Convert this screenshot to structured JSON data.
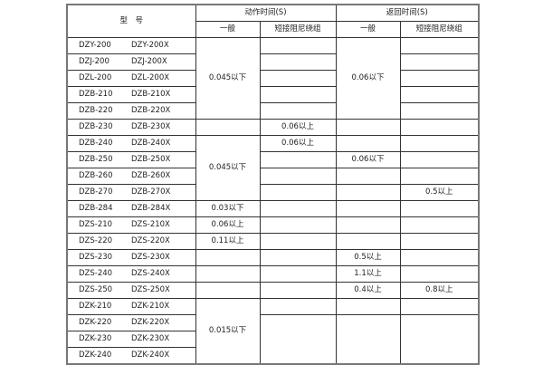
{
  "header": {
    "model": "型　号",
    "action_time": "动作时间(S)",
    "return_time": "返回时间(S)",
    "general": "一般",
    "short_damping": "短接阻尼绕组"
  },
  "rows": [
    {
      "model_a": "DZY-200",
      "model_b": "DZY-200X",
      "action_general": "0.045以下",
      "action_short": "",
      "return_general": "0.06以下",
      "return_short": ""
    },
    {
      "model_a": "DZJ-200",
      "model_b": "DZJ-200X",
      "action_general": "",
      "action_short": "",
      "return_general": "",
      "return_short": ""
    },
    {
      "model_a": "DZL-200",
      "model_b": "DZL-200X",
      "action_general": "",
      "action_short": "",
      "return_general": "",
      "return_short": ""
    },
    {
      "model_a": "DZB-210",
      "model_b": "DZB-210X",
      "action_general": "",
      "action_short": "",
      "return_general": "",
      "return_short": ""
    },
    {
      "model_a": "DZB-220",
      "model_b": "DZB-220X",
      "action_general": "",
      "action_short": "",
      "return_general": "",
      "return_short": ""
    },
    {
      "model_a": "DZB-230",
      "model_b": "DZB-230X",
      "action_general": "",
      "action_short": "0.06以上",
      "return_general": "",
      "return_short": ""
    },
    {
      "model_a": "DZB-240",
      "model_b": "DZB-240X",
      "action_general": "0.045以下",
      "action_short": "0.06以上",
      "return_general": "",
      "return_short": ""
    },
    {
      "model_a": "DZB-250",
      "model_b": "DZB-250X",
      "action_general": "",
      "action_short": "",
      "return_general": "0.06以下",
      "return_short": ""
    },
    {
      "model_a": "DZB-260",
      "model_b": "DZB-260X",
      "action_general": "",
      "action_short": "",
      "return_general": "",
      "return_short": ""
    },
    {
      "model_a": "DZB-270",
      "model_b": "DZB-270X",
      "action_general": "",
      "action_short": "",
      "return_general": "",
      "return_short": "0.5以上"
    },
    {
      "model_a": "DZB-284",
      "model_b": "DZB-284X",
      "action_general": "0.03以下",
      "action_short": "",
      "return_general": "",
      "return_short": ""
    },
    {
      "model_a": "DZS-210",
      "model_b": "DZS-210X",
      "action_general": "0.06以上",
      "action_short": "",
      "return_general": "",
      "return_short": ""
    },
    {
      "model_a": "DZS-220",
      "model_b": "DZS-220X",
      "action_general": "0.11以上",
      "action_short": "",
      "return_general": "",
      "return_short": ""
    },
    {
      "model_a": "DZS-230",
      "model_b": "DZS-230X",
      "action_general": "",
      "action_short": "",
      "return_general": "0.5以上",
      "return_short": ""
    },
    {
      "model_a": "DZS-240",
      "model_b": "DZS-240X",
      "action_general": "",
      "action_short": "",
      "return_general": "1.1以上",
      "return_short": ""
    },
    {
      "model_a": "DZS-250",
      "model_b": "DZS-250X",
      "action_general": "",
      "action_short": "",
      "return_general": "0.4以上",
      "return_short": "0.8以上"
    },
    {
      "model_a": "DZK-210",
      "model_b": "DZK-210X",
      "action_general": "0.015以下",
      "action_short": "",
      "return_general": "",
      "return_short": ""
    },
    {
      "model_a": "DZK-220",
      "model_b": "DZK-220X",
      "action_general": "",
      "action_short": "",
      "return_general": "",
      "return_short": ""
    },
    {
      "model_a": "DZK-230",
      "model_b": "DZK-230X",
      "action_general": "",
      "action_short": "",
      "return_general": "",
      "return_short": ""
    },
    {
      "model_a": "DZK-240",
      "model_b": "DZK-240X",
      "action_general": "",
      "action_short": "",
      "return_general": "",
      "return_short": ""
    }
  ]
}
